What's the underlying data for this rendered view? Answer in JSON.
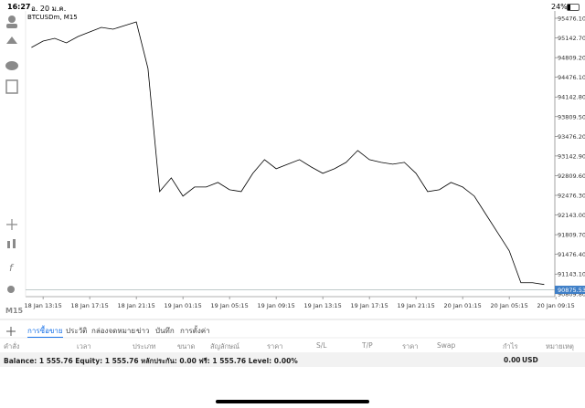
{
  "status_bar": {
    "time": "16:27",
    "date": "อ. 20 ม.ค.",
    "battery": "24%"
  },
  "chart_data": {
    "type": "line",
    "title": "BTCUSDm, M15",
    "categories": [
      null,
      "18 Jan 13:15",
      null,
      null,
      null,
      "18 Jan 17:15",
      null,
      null,
      null,
      "18 Jan 21:15",
      null,
      null,
      null,
      "19 Jan 01:15",
      null,
      null,
      null,
      "19 Jan 05:15",
      null,
      null,
      null,
      "19 Jan 09:15",
      null,
      null,
      null,
      "19 Jan 13:15",
      null,
      null,
      null,
      "19 Jan 17:15",
      null,
      null,
      null,
      "19 Jan 21:15",
      null,
      null,
      null,
      "20 Jan 01:15",
      null,
      null,
      null,
      "20 Jan 05:15",
      null,
      null,
      null,
      "20 Jan 09:15"
    ],
    "values": [
      94982,
      95090,
      95136,
      95059,
      95167,
      95244,
      95322,
      95291,
      95352,
      95414,
      94626,
      92540,
      92772,
      92463,
      92617,
      92617,
      92695,
      92571,
      92540,
      92849,
      93081,
      92927,
      93004,
      93081,
      92958,
      92849,
      92927,
      93035,
      93236,
      93081,
      93035,
      93004,
      93035,
      92849,
      92540,
      92571,
      92695,
      92617,
      92463,
      92154,
      91845,
      91537,
      90996,
      90996,
      90966,
      null
    ],
    "color": "#000000",
    "ylim": [
      90760,
      95600
    ],
    "yticks": [
      {
        "value": 95476.1,
        "label": "95476.10"
      },
      {
        "value": 95142.7,
        "label": "95142.70"
      },
      {
        "value": 94809.2,
        "label": "94809.20"
      },
      {
        "value": 94476.1,
        "label": "94476.10"
      },
      {
        "value": 94142.8,
        "label": "94142.80"
      },
      {
        "value": 93809.5,
        "label": "93809.50"
      },
      {
        "value": 93476.2,
        "label": "93476.20"
      },
      {
        "value": 93142.9,
        "label": "93142.90"
      },
      {
        "value": 92809.6,
        "label": "92809.60"
      },
      {
        "value": 92476.3,
        "label": "92476.30"
      },
      {
        "value": 92143,
        "label": "92143.00"
      },
      {
        "value": 91809.7,
        "label": "91809.70"
      },
      {
        "value": 91476.4,
        "label": "91476.40"
      },
      {
        "value": 91143.1,
        "label": "91143.10"
      },
      {
        "value": 90809.8,
        "label": "90809.80"
      }
    ],
    "current_price": {
      "value": 90875.53,
      "label": "90875.53"
    },
    "grid": false
  },
  "side_toolbar": {
    "timeframe": "M15"
  },
  "tabs": [
    "การซื้อขาย",
    "ประวัติ",
    "กล่องจดหมาย",
    "ข่าว",
    "บันทึก",
    "การตั้งค่า"
  ],
  "table_headers": [
    "คำสั่ง",
    "เวลา",
    "ประเภท",
    "ขนาด",
    "สัญลักษณ์",
    "ราคา",
    "S/L",
    "T/P",
    "ราคา",
    "Swap",
    "กำไร",
    "หมายเหตุ"
  ],
  "account": {
    "summary": "Balance: 1 555.76 Equity: 1 555.76 หลักประกัน: 0.00 ฟรี: 1 555.76 Level: 0.00%",
    "total": "0.00",
    "currency": "USD"
  }
}
